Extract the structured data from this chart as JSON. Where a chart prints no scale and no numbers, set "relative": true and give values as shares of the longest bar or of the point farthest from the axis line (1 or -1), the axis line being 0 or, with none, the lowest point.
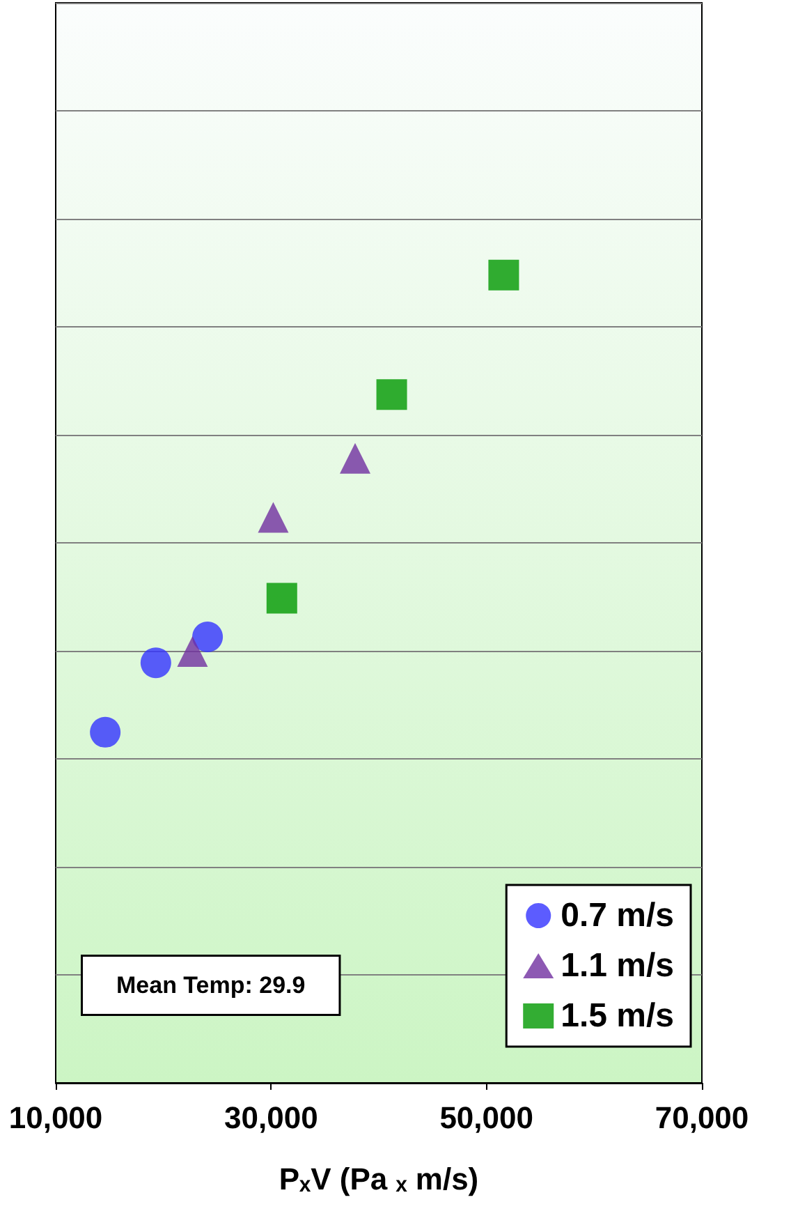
{
  "chart_data": {
    "type": "scatter",
    "xlabel": "PₓV (Pa ₓ m/s)",
    "relative": true,
    "xlim": [
      10000,
      70000
    ],
    "xticks": [
      {
        "value": 10000,
        "label": "10,000"
      },
      {
        "value": 30000,
        "label": "30,000"
      },
      {
        "value": 50000,
        "label": "50,000"
      },
      {
        "value": 70000,
        "label": "70,000"
      }
    ],
    "grid": "y",
    "legend": "bottom right",
    "annotations": [
      "Mean Temp: 29.9"
    ],
    "series": [
      {
        "name": "0.7 m/s",
        "color": "#3333ff",
        "marker": "circle",
        "x": [
          14600,
          19300,
          24100
        ],
        "values": [
          0.434,
          0.52,
          0.552
        ]
      },
      {
        "name": "1.1 m/s",
        "color": "#7030a0",
        "marker": "triangle",
        "x": [
          22700,
          30200,
          37800
        ],
        "values": [
          0.534,
          0.7,
          0.773
        ]
      },
      {
        "name": "1.5 m/s",
        "color": "#009900",
        "marker": "square",
        "x": [
          31000,
          41200,
          51600
        ],
        "values": [
          0.6,
          0.852,
          1
        ]
      }
    ]
  }
}
